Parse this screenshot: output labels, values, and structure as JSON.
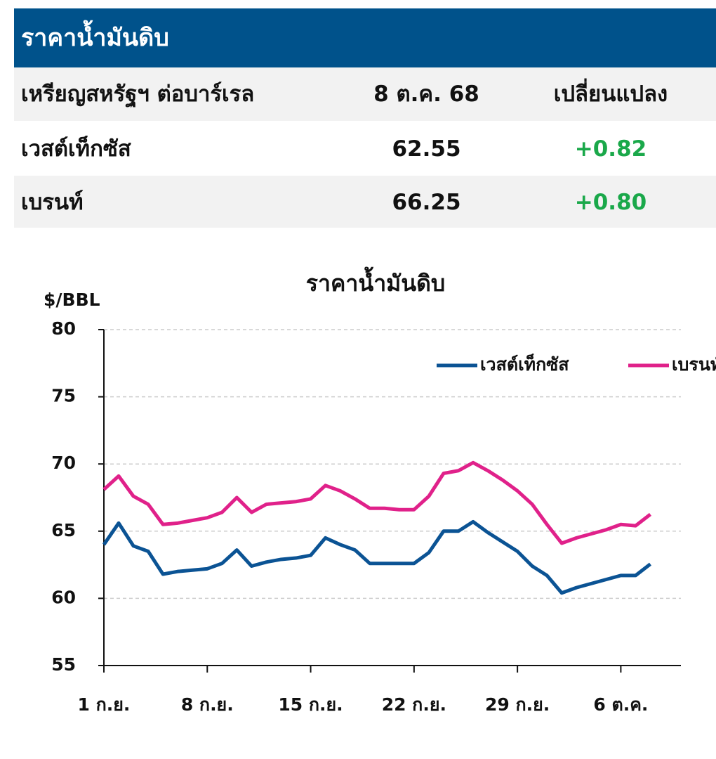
{
  "table": {
    "title": "ราคาน้ำมันดิบ",
    "header": [
      "เหรียญสหรัฐฯ ต่อบาร์เรล",
      "8 ต.ค. 68",
      "เปลี่ยนแปลง"
    ],
    "rows": [
      [
        "เวสต์เท็กซัส",
        "62.55",
        "+0.82"
      ],
      [
        "เบรนท์",
        "66.25",
        "+0.80"
      ]
    ]
  },
  "chart_data": {
    "type": "line",
    "title": "ราคาน้ำมันดิบ",
    "y_label": "$/BBL",
    "categories": [
      "1 ก.ย.",
      null,
      null,
      null,
      null,
      null,
      null,
      "8 ก.ย.",
      null,
      null,
      null,
      null,
      null,
      null,
      "15 ก.ย.",
      null,
      null,
      null,
      null,
      null,
      null,
      "22 ก.ย.",
      null,
      null,
      null,
      null,
      null,
      null,
      "29 ก.ย.",
      null,
      null,
      null,
      null,
      null,
      null,
      "6 ต.ค.",
      null,
      null
    ],
    "series": [
      {
        "name": "เวสต์เท็กซัส",
        "color": "#0b5394",
        "values": [
          64.0,
          65.6,
          63.9,
          63.5,
          61.8,
          62.0,
          62.1,
          62.2,
          62.6,
          63.6,
          62.4,
          62.7,
          62.9,
          63.0,
          63.2,
          64.5,
          64.0,
          63.6,
          62.6,
          62.6,
          62.6,
          62.6,
          63.4,
          65.0,
          65.0,
          65.7,
          64.9,
          64.2,
          63.5,
          62.4,
          61.7,
          60.4,
          60.8,
          61.1,
          61.4,
          61.7,
          61.7,
          62.55
        ]
      },
      {
        "name": "เบรนท์",
        "color": "#e0218a",
        "values": [
          68.1,
          69.1,
          67.6,
          67.0,
          65.5,
          65.6,
          65.8,
          66.0,
          66.4,
          67.5,
          66.4,
          67.0,
          67.1,
          67.2,
          67.4,
          68.4,
          68.0,
          67.4,
          66.7,
          66.7,
          66.6,
          66.6,
          67.6,
          69.3,
          69.5,
          70.1,
          69.5,
          68.8,
          68.0,
          67.0,
          65.5,
          64.1,
          64.5,
          64.8,
          65.1,
          65.5,
          65.4,
          66.25
        ]
      }
    ],
    "ylim": [
      55,
      80
    ],
    "yticks": [
      55,
      60,
      65,
      70,
      75,
      80
    ],
    "grid": true,
    "legend": "top-right"
  }
}
